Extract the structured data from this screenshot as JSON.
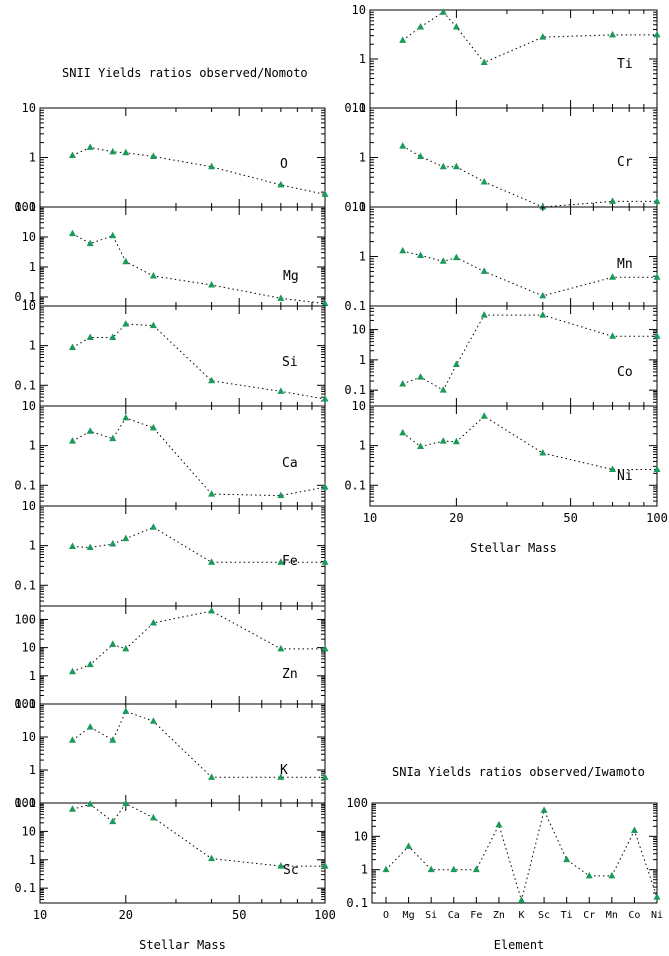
{
  "titles": {
    "left": "SNII Yields ratios observed/Nomoto",
    "bottom_right": "SNIa Yields ratios observed/Iwamoto"
  },
  "colors": {
    "marker": "#1a9a5a",
    "axis": "#000000"
  },
  "chart_data": [
    {
      "type": "scatter",
      "label": "O",
      "xlabel": "",
      "ylabel": "",
      "x_scale": "log",
      "y_scale": "log",
      "xlim": [
        10,
        100
      ],
      "ylim": [
        0.1,
        10
      ],
      "yticks": [
        "0.1",
        "1",
        "10"
      ],
      "xticks": [],
      "x": [
        13,
        15,
        18,
        20,
        25,
        40,
        70,
        100
      ],
      "y": [
        1.1,
        1.6,
        1.3,
        1.25,
        1.05,
        0.65,
        0.28,
        0.18
      ]
    },
    {
      "type": "scatter",
      "label": "Mg",
      "xlabel": "",
      "ylabel": "",
      "x_scale": "log",
      "y_scale": "log",
      "xlim": [
        10,
        100
      ],
      "ylim": [
        0.05,
        100
      ],
      "yticks": [
        "0.1",
        "1",
        "10",
        "100"
      ],
      "xticks": [],
      "x": [
        13,
        15,
        18,
        20,
        25,
        40,
        70,
        100
      ],
      "y": [
        13,
        6,
        11,
        1.5,
        0.5,
        0.25,
        0.09,
        0.06
      ]
    },
    {
      "type": "scatter",
      "label": "Si",
      "xlabel": "",
      "ylabel": "",
      "x_scale": "log",
      "y_scale": "log",
      "xlim": [
        10,
        100
      ],
      "ylim": [
        0.03,
        10
      ],
      "yticks": [
        "0.1",
        "1",
        "10"
      ],
      "xticks": [],
      "x": [
        13,
        15,
        18,
        20,
        25,
        40,
        70,
        100
      ],
      "y": [
        0.9,
        1.6,
        1.6,
        3.5,
        3.2,
        0.13,
        0.07,
        0.045
      ]
    },
    {
      "type": "scatter",
      "label": "Ca",
      "xlabel": "",
      "ylabel": "",
      "x_scale": "log",
      "y_scale": "log",
      "xlim": [
        10,
        100
      ],
      "ylim": [
        0.03,
        10
      ],
      "yticks": [
        "0.1",
        "1",
        "10"
      ],
      "xticks": [],
      "x": [
        13,
        15,
        18,
        20,
        25,
        40,
        70,
        100
      ],
      "y": [
        1.3,
        2.3,
        1.5,
        5.0,
        2.8,
        0.06,
        0.055,
        0.09
      ]
    },
    {
      "type": "scatter",
      "label": "Fe",
      "xlabel": "",
      "ylabel": "",
      "x_scale": "log",
      "y_scale": "log",
      "xlim": [
        10,
        100
      ],
      "ylim": [
        0.03,
        10
      ],
      "yticks": [
        "0.1",
        "1",
        "10"
      ],
      "xticks": [],
      "x": [
        13,
        15,
        18,
        20,
        25,
        40,
        70,
        100
      ],
      "y": [
        0.95,
        0.9,
        1.1,
        1.5,
        2.9,
        0.38,
        0.38,
        0.38
      ]
    },
    {
      "type": "scatter",
      "label": "Zn",
      "xlabel": "",
      "ylabel": "",
      "x_scale": "log",
      "y_scale": "log",
      "xlim": [
        10,
        100
      ],
      "ylim": [
        0.1,
        300
      ],
      "yticks": [
        "0.1",
        "1",
        "10",
        "100"
      ],
      "xticks": [],
      "x": [
        13,
        15,
        18,
        20,
        25,
        40,
        70,
        100
      ],
      "y": [
        1.4,
        2.5,
        13,
        9,
        75,
        200,
        9,
        9
      ]
    },
    {
      "type": "scatter",
      "label": "K",
      "xlabel": "",
      "ylabel": "",
      "x_scale": "log",
      "y_scale": "log",
      "xlim": [
        10,
        100
      ],
      "ylim": [
        0.1,
        100
      ],
      "yticks": [
        "0.1",
        "1",
        "10",
        "100"
      ],
      "xticks": [],
      "x": [
        13,
        15,
        18,
        20,
        25,
        40,
        70,
        100
      ],
      "y": [
        8,
        20,
        8,
        60,
        30,
        0.6,
        0.6,
        0.6
      ]
    },
    {
      "type": "scatter",
      "label": "Sc",
      "xlabel": "Stellar Mass",
      "ylabel": "",
      "x_scale": "log",
      "y_scale": "log",
      "xlim": [
        10,
        100
      ],
      "ylim": [
        0.03,
        100
      ],
      "yticks": [
        "0.1",
        "1",
        "10",
        "100"
      ],
      "xticks": [
        "10",
        "20",
        "50",
        "100"
      ],
      "x": [
        13,
        15,
        18,
        20,
        25,
        40,
        70,
        100
      ],
      "y": [
        60,
        90,
        22,
        95,
        30,
        1.1,
        0.6,
        0.6
      ]
    },
    {
      "type": "scatter",
      "label": "Ti",
      "xlabel": "",
      "ylabel": "",
      "x_scale": "log",
      "y_scale": "log",
      "xlim": [
        10,
        100
      ],
      "ylim": [
        0.1,
        10
      ],
      "yticks": [
        "0.1",
        "1",
        "10"
      ],
      "xticks": [],
      "x": [
        13,
        15,
        18,
        20,
        25,
        40,
        70,
        100
      ],
      "y": [
        2.4,
        4.5,
        9,
        4.5,
        0.85,
        2.8,
        3.1,
        3.1
      ]
    },
    {
      "type": "scatter",
      "label": "Cr",
      "xlabel": "",
      "ylabel": "",
      "x_scale": "log",
      "y_scale": "log",
      "xlim": [
        10,
        100
      ],
      "ylim": [
        0.1,
        10
      ],
      "yticks": [
        "0.1",
        "1",
        "10"
      ],
      "xticks": [],
      "x": [
        13,
        15,
        18,
        20,
        25,
        40,
        70,
        100
      ],
      "y": [
        1.7,
        1.05,
        0.65,
        0.65,
        0.32,
        0.1,
        0.13,
        0.13
      ]
    },
    {
      "type": "scatter",
      "label": "Mn",
      "xlabel": "",
      "ylabel": "",
      "x_scale": "log",
      "y_scale": "log",
      "xlim": [
        10,
        100
      ],
      "ylim": [
        0.1,
        10
      ],
      "yticks": [
        "0.1",
        "1",
        "10"
      ],
      "xticks": [],
      "x": [
        13,
        15,
        18,
        20,
        25,
        40,
        70,
        100
      ],
      "y": [
        1.3,
        1.05,
        0.8,
        0.95,
        0.5,
        0.16,
        0.38,
        0.38
      ]
    },
    {
      "type": "scatter",
      "label": "Co",
      "xlabel": "",
      "ylabel": "",
      "x_scale": "log",
      "y_scale": "log",
      "xlim": [
        10,
        100
      ],
      "ylim": [
        0.03,
        60
      ],
      "yticks": [
        "0.1",
        "1",
        "10"
      ],
      "xticks": [],
      "x": [
        13,
        15,
        18,
        20,
        25,
        40,
        70,
        100
      ],
      "y": [
        0.16,
        0.27,
        0.1,
        0.7,
        30,
        30,
        6,
        6
      ]
    },
    {
      "type": "scatter",
      "label": "Ni",
      "xlabel": "Stellar Mass",
      "ylabel": "",
      "x_scale": "log",
      "y_scale": "log",
      "xlim": [
        10,
        100
      ],
      "ylim": [
        0.03,
        10
      ],
      "yticks": [
        "0.1",
        "1",
        "10"
      ],
      "xticks": [
        "10",
        "20",
        "50",
        "100"
      ],
      "x": [
        13,
        15,
        18,
        20,
        25,
        40,
        70,
        100
      ],
      "y": [
        2.1,
        0.95,
        1.3,
        1.25,
        5.5,
        0.65,
        0.25,
        0.25
      ]
    },
    {
      "type": "scatter",
      "label": "",
      "xlabel": "Element",
      "ylabel": "",
      "x_scale": "category",
      "y_scale": "log",
      "ylim": [
        0.1,
        100
      ],
      "yticks": [
        "0.1",
        "1",
        "10",
        "100"
      ],
      "categories": [
        "O",
        "Mg",
        "Si",
        "Ca",
        "Fe",
        "Zn",
        "K",
        "Sc",
        "Ti",
        "Cr",
        "Mn",
        "Co",
        "Ni"
      ],
      "values": [
        1.0,
        5.0,
        1.0,
        1.0,
        1.0,
        22,
        0.12,
        60,
        2.0,
        0.65,
        0.65,
        15,
        0.15
      ]
    }
  ]
}
